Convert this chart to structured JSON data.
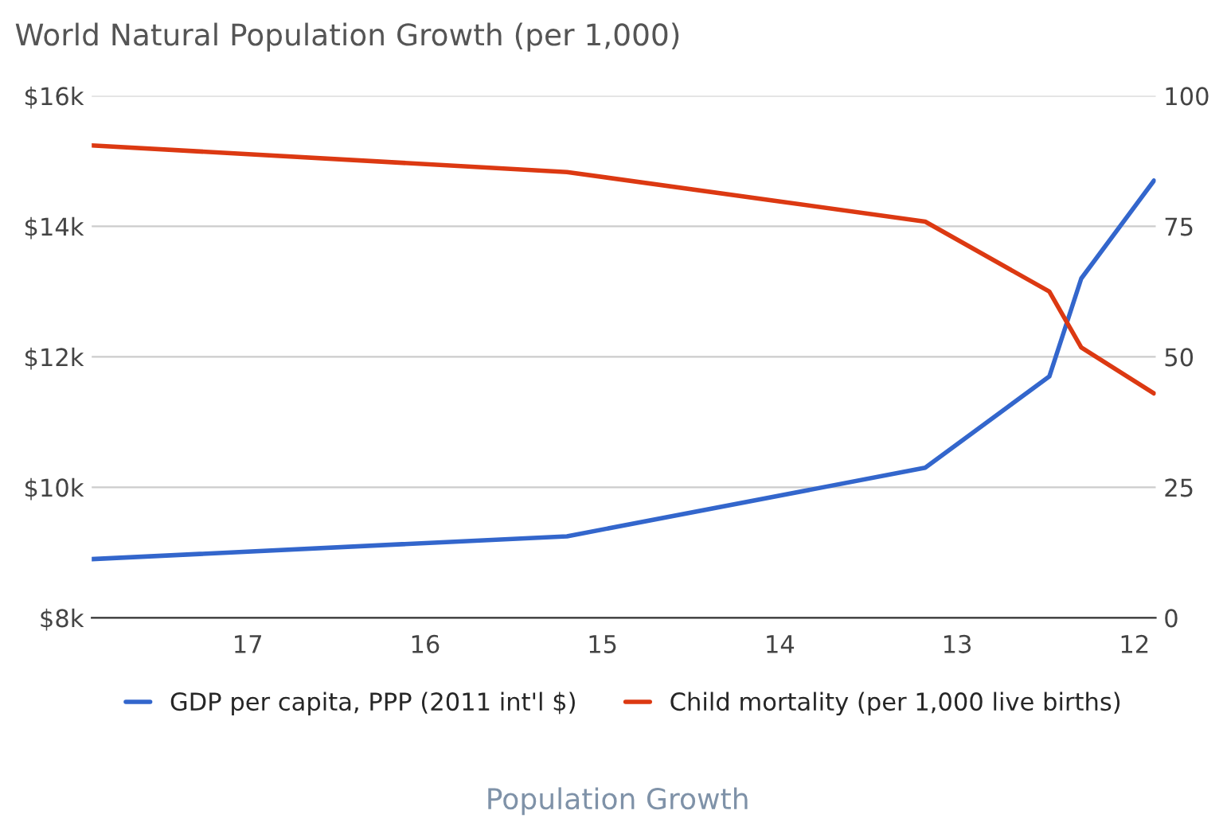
{
  "chart_data": {
    "type": "line",
    "title": "World Natural Population Growth (per 1,000)",
    "xlabel": "Population Growth",
    "xlim": [
      17.88,
      11.88
    ],
    "xticks": [
      17,
      16,
      15,
      14,
      13,
      12
    ],
    "ylim": [
      8000,
      16000
    ],
    "yticks": [
      {
        "value": 8000,
        "label": "$8k"
      },
      {
        "value": 10000,
        "label": "$10k"
      },
      {
        "value": 12000,
        "label": "$12k"
      },
      {
        "value": 14000,
        "label": "$14k"
      },
      {
        "value": 16000,
        "label": "$16k"
      }
    ],
    "y2lim": [
      0,
      100
    ],
    "y2ticks": [
      0,
      25,
      50,
      75,
      100
    ],
    "grid": "y",
    "legend": "bottom",
    "marker": "none",
    "line_style": "solid",
    "series": [
      {
        "name": "GDP per capita, PPP (2011 int'l $)",
        "color": "#3366cc",
        "x": [
          17.88,
          15.2,
          13.18,
          12.48,
          12.3,
          11.89
        ],
        "values": [
          8900,
          9250,
          10300,
          11700,
          13200,
          14700
        ]
      },
      {
        "name": "Child mortality (per 1,000 live births)",
        "color": "#dc3912",
        "axis": "y2",
        "x": [
          17.88,
          15.2,
          13.18,
          12.48,
          12.3,
          11.89
        ],
        "values": [
          90.5,
          85.4,
          75.9,
          62.5,
          51.8,
          43
        ]
      }
    ]
  }
}
